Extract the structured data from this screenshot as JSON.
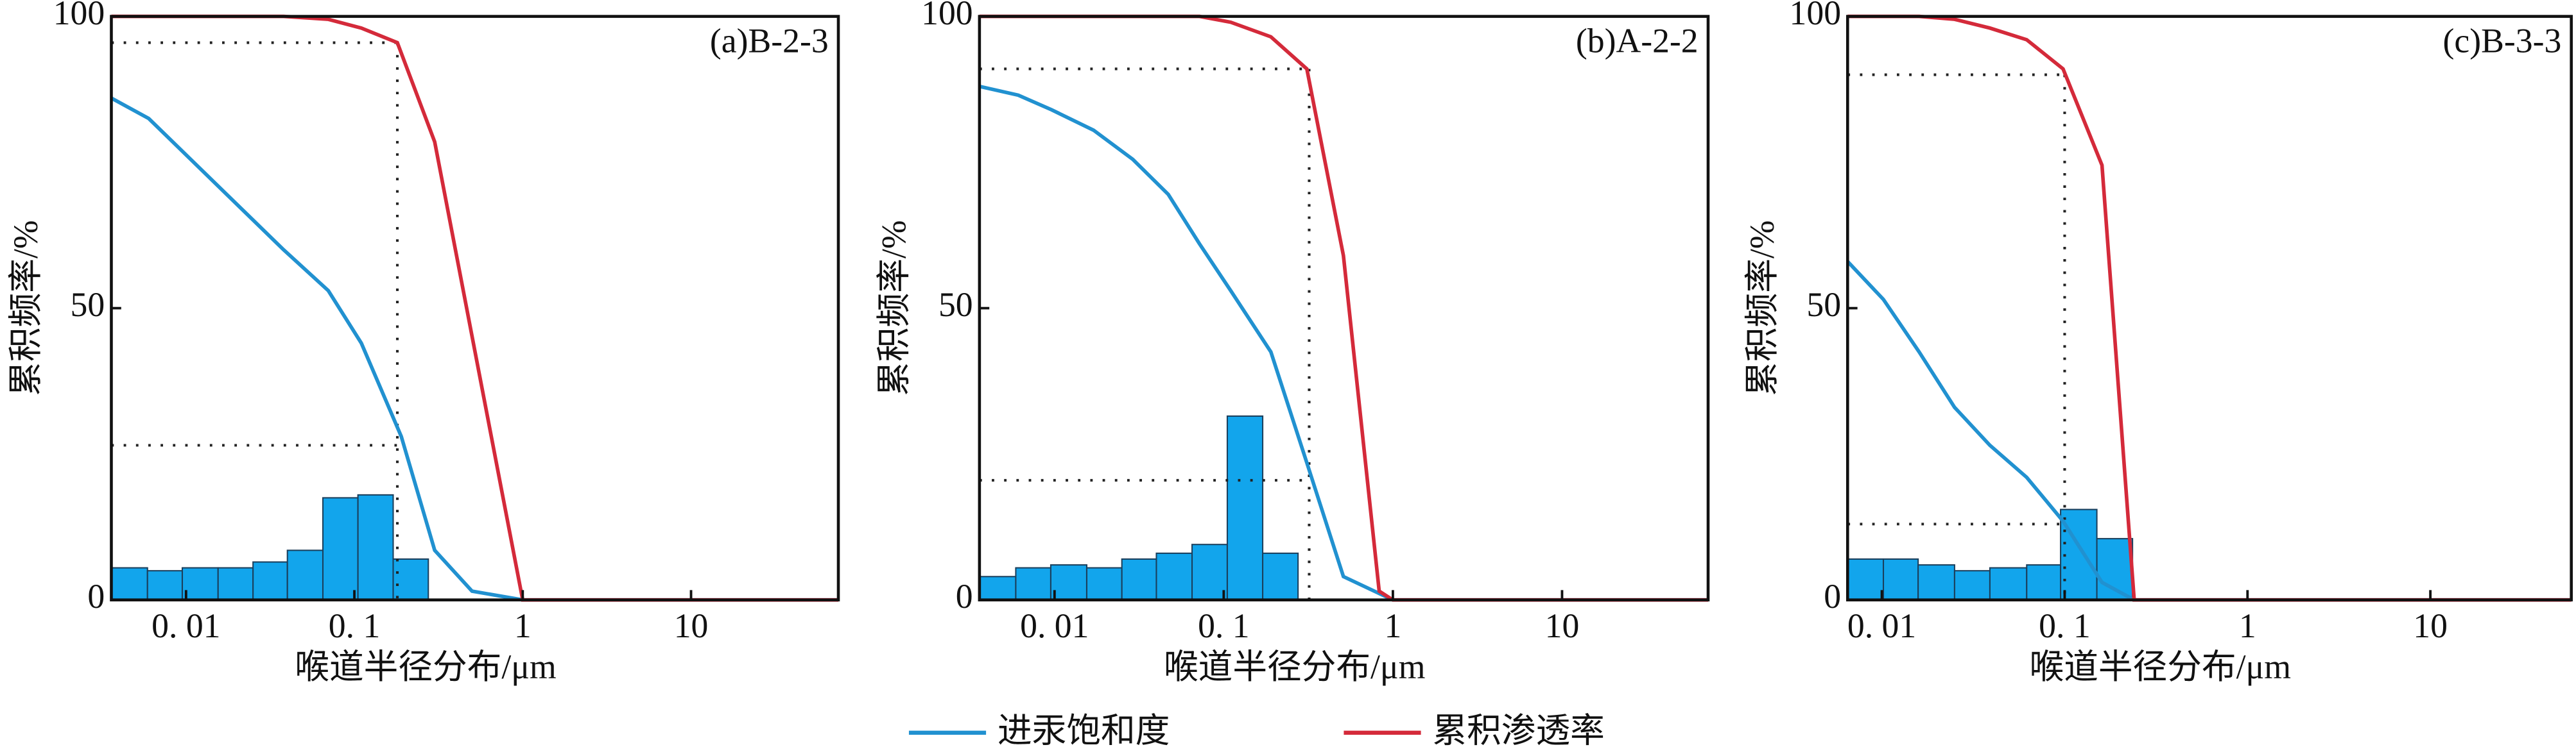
{
  "chart_data": [
    {
      "type": "histogram-line",
      "annotation": "(a)B-2-3",
      "xlabel": "喉道半径分布/μm",
      "ylabel": "累积频率/%",
      "xscale": "log",
      "xlim": [
        0.0036,
        75
      ],
      "ylim": [
        0,
        100
      ],
      "xticks": [
        {
          "value": 0.01,
          "label": "0. 01"
        },
        {
          "value": 0.1,
          "label": "0. 1"
        },
        1,
        10
      ],
      "yticks": [
        0,
        50,
        100
      ],
      "bins": [
        0.0036,
        0.0059,
        0.0095,
        0.0155,
        0.025,
        0.04,
        0.065,
        0.105,
        0.17,
        0.275
      ],
      "values": [
        5.5,
        5,
        5.5,
        5.5,
        6.5,
        8.5,
        17.5,
        18,
        7
      ],
      "color": "#12a5ec",
      "series": [
        {
          "name": "进汞饱和度",
          "color": "#2191d0",
          "x": [
            0.0036,
            0.006,
            0.038,
            0.07,
            0.11,
            0.19,
            0.3,
            0.5,
            1,
            75
          ],
          "values": [
            86,
            82.5,
            60,
            53,
            44,
            28,
            8.5,
            1.5,
            0,
            0
          ]
        },
        {
          "name": "累积渗透率",
          "color": "#d42a3a",
          "x": [
            0.0036,
            0.038,
            0.07,
            0.11,
            0.18,
            0.3,
            1,
            75
          ],
          "values": [
            100,
            100,
            99.5,
            98,
            95.5,
            78.5,
            0,
            0
          ]
        }
      ],
      "reference_x": 0.18,
      "reference_y": [
        95.5,
        26.5
      ]
    },
    {
      "type": "histogram-line",
      "annotation": "(b)A-2-2",
      "xlabel": "喉道半径分布/μm",
      "ylabel": "累积频率/%",
      "xscale": "log",
      "xlim": [
        0.0036,
        73
      ],
      "ylim": [
        0,
        100
      ],
      "xticks": [
        {
          "value": 0.01,
          "label": "0. 01"
        },
        {
          "value": 0.1,
          "label": "0. 1"
        },
        1,
        10
      ],
      "yticks": [
        0,
        50,
        100
      ],
      "bins": [
        0.0036,
        0.0059,
        0.0095,
        0.0155,
        0.025,
        0.04,
        0.065,
        0.105,
        0.17,
        0.275
      ],
      "values": [
        4,
        5.5,
        6,
        5.5,
        7,
        8,
        9.5,
        31.5,
        8
      ],
      "color": "#12a5ec",
      "series": [
        {
          "name": "进汞饱和度",
          "color": "#2191d0",
          "x": [
            0.0036,
            0.0061,
            0.0096,
            0.017,
            0.029,
            0.047,
            0.072,
            0.11,
            0.19,
            0.31,
            0.51,
            1,
            73
          ],
          "values": [
            88,
            86.5,
            84,
            80.5,
            75.5,
            69.5,
            61,
            53,
            42.5,
            23.5,
            4,
            0,
            0
          ]
        },
        {
          "name": "累积渗透率",
          "color": "#d42a3a",
          "x": [
            0.0036,
            0.072,
            0.11,
            0.19,
            0.31,
            0.51,
            0.83,
            1,
            73
          ],
          "values": [
            100,
            100,
            99,
            96.5,
            91,
            59,
            1.5,
            0,
            0
          ]
        }
      ],
      "reference_x": 0.32,
      "reference_y": [
        91,
        20.5
      ]
    },
    {
      "type": "histogram-line",
      "annotation": "(c)B-3-3",
      "xlabel": "喉道半径分布/μm",
      "ylabel": "累积频率/%",
      "xscale": "log",
      "xlim": [
        0.0065,
        59
      ],
      "ylim": [
        0,
        100
      ],
      "xticks": [
        {
          "value": 0.01,
          "label": "0. 01"
        },
        {
          "value": 0.1,
          "label": "0. 1"
        },
        1,
        10
      ],
      "yticks": [
        0,
        50,
        100
      ],
      "bins": [
        0.0065,
        0.0102,
        0.0158,
        0.025,
        0.039,
        0.062,
        0.095,
        0.15,
        0.235
      ],
      "values": [
        7,
        7,
        6,
        5,
        5.5,
        6,
        15.5,
        10.5
      ],
      "color": "#12a5ec",
      "series": [
        {
          "name": "进汞饱和度",
          "color": "#2191d0",
          "x": [
            0.0065,
            0.0102,
            0.016,
            0.025,
            0.039,
            0.062,
            0.098,
            0.16,
            0.24,
            59
          ],
          "values": [
            58,
            51.5,
            42.5,
            33,
            26.5,
            21,
            13.5,
            3,
            0,
            0
          ]
        },
        {
          "name": "累积渗透率",
          "color": "#d42a3a",
          "x": [
            0.0065,
            0.016,
            0.025,
            0.039,
            0.062,
            0.098,
            0.16,
            0.24,
            59
          ],
          "values": [
            100,
            100,
            99.5,
            98,
            96,
            91,
            74.5,
            0,
            0
          ]
        }
      ],
      "reference_x": 0.1,
      "reference_y": [
        90,
        13
      ]
    }
  ]
}
